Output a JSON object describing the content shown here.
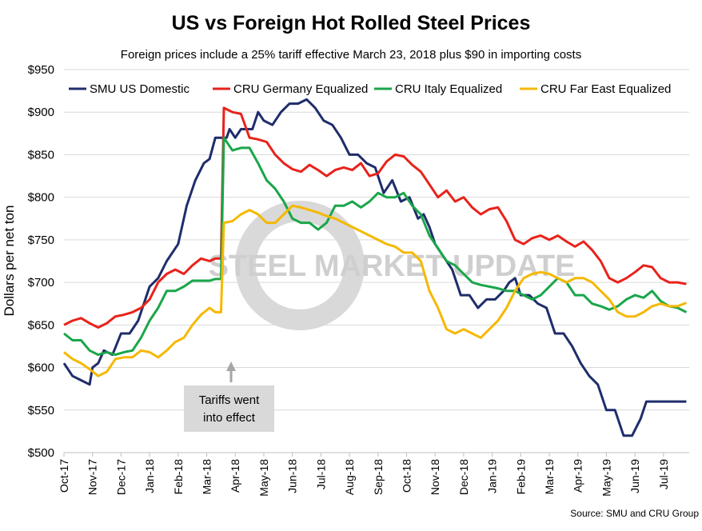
{
  "chart_data": {
    "type": "line",
    "title": "US vs Foreign Hot Rolled Steel Prices",
    "subtitle": "Foreign prices include a 25% tariff effective March 23, 2018 plus $90 in importing costs",
    "ylabel": "Dollars per net ton",
    "xlabel": "",
    "source": "Source: SMU and CRU Group",
    "watermark": "STEEL MARKET UPDATE",
    "annotation": {
      "text": [
        "Tariffs went",
        "into effect"
      ],
      "x": 5.8
    },
    "ylim": [
      500,
      950
    ],
    "yticks": [
      500,
      550,
      600,
      650,
      700,
      750,
      800,
      850,
      900,
      950
    ],
    "ytick_labels": [
      "$500",
      "$550",
      "$600",
      "$650",
      "$700",
      "$750",
      "$800",
      "$850",
      "$900",
      "$950"
    ],
    "xlim": [
      0,
      21.9
    ],
    "x_categories": [
      "Oct-17",
      "Nov-17",
      "Dec-17",
      "Jan-18",
      "Feb-18",
      "Mar-18",
      "Apr-18",
      "May-18",
      "Jun-18",
      "Jul-18",
      "Aug-18",
      "Sep-18",
      "Oct-18",
      "Nov-18",
      "Dec-18",
      "Jan-19",
      "Feb-19",
      "Mar-19",
      "Apr-19",
      "May-19",
      "Jun-19",
      "Jul-19"
    ],
    "x_note": "x values are months since Oct-17 (0 = Oct-17, 1 = Nov-17, ...)",
    "legend_position": "top",
    "grid": true,
    "series": [
      {
        "name": "SMU US Domestic",
        "color": "#1f2d6b",
        "x": [
          0,
          0.3,
          0.6,
          0.9,
          1.0,
          1.2,
          1.4,
          1.7,
          2.0,
          2.3,
          2.6,
          3.0,
          3.3,
          3.6,
          4.0,
          4.3,
          4.6,
          4.9,
          5.1,
          5.3,
          5.5,
          5.7,
          5.8,
          6.0,
          6.2,
          6.4,
          6.6,
          6.8,
          7.0,
          7.3,
          7.6,
          7.9,
          8.2,
          8.5,
          8.8,
          9.1,
          9.4,
          9.7,
          10.0,
          10.3,
          10.6,
          10.9,
          11.2,
          11.5,
          11.8,
          12.1,
          12.4,
          12.6,
          12.8,
          13.0,
          13.3,
          13.6,
          13.9,
          14.2,
          14.5,
          14.8,
          15.1,
          15.4,
          15.6,
          15.8,
          16.0,
          16.3,
          16.6,
          16.9,
          17.2,
          17.5,
          17.8,
          18.1,
          18.4,
          18.7,
          19.0,
          19.3,
          19.6,
          19.9,
          20.2,
          20.4,
          20.6,
          20.9,
          21.1,
          21.4,
          21.8
        ],
        "y": [
          605,
          590,
          585,
          580,
          600,
          605,
          620,
          615,
          640,
          640,
          655,
          695,
          705,
          725,
          745,
          790,
          820,
          840,
          845,
          870,
          870,
          870,
          880,
          870,
          880,
          880,
          880,
          900,
          890,
          885,
          900,
          910,
          910,
          915,
          905,
          890,
          885,
          870,
          850,
          850,
          840,
          835,
          805,
          820,
          795,
          800,
          775,
          780,
          765,
          745,
          730,
          715,
          685,
          685,
          670,
          680,
          680,
          690,
          700,
          705,
          685,
          685,
          675,
          670,
          640,
          640,
          625,
          605,
          590,
          580,
          550,
          550,
          520,
          520,
          540,
          560,
          560,
          560,
          560,
          560,
          560
        ]
      },
      {
        "name": "CRU Germany Equalized",
        "color": "#e8221b",
        "x": [
          0,
          0.3,
          0.6,
          0.9,
          1.2,
          1.5,
          1.8,
          2.1,
          2.4,
          2.7,
          3.0,
          3.3,
          3.6,
          3.9,
          4.2,
          4.5,
          4.8,
          5.1,
          5.3,
          5.5,
          5.6,
          5.9,
          6.2,
          6.5,
          6.8,
          7.1,
          7.4,
          7.7,
          8.0,
          8.3,
          8.6,
          8.9,
          9.2,
          9.5,
          9.8,
          10.1,
          10.4,
          10.7,
          11.0,
          11.3,
          11.6,
          11.9,
          12.2,
          12.5,
          12.8,
          13.1,
          13.4,
          13.7,
          14.0,
          14.3,
          14.6,
          14.9,
          15.2,
          15.5,
          15.8,
          16.1,
          16.4,
          16.7,
          17.0,
          17.3,
          17.6,
          17.9,
          18.2,
          18.5,
          18.8,
          19.1,
          19.4,
          19.7,
          20.0,
          20.3,
          20.6,
          20.9,
          21.2,
          21.5,
          21.8
        ],
        "y": [
          650,
          655,
          658,
          652,
          647,
          652,
          660,
          662,
          665,
          670,
          680,
          700,
          710,
          715,
          710,
          720,
          728,
          725,
          728,
          728,
          905,
          900,
          898,
          870,
          868,
          865,
          850,
          840,
          833,
          830,
          838,
          832,
          825,
          832,
          835,
          832,
          840,
          825,
          828,
          842,
          850,
          848,
          838,
          830,
          815,
          800,
          808,
          795,
          800,
          788,
          780,
          786,
          788,
          772,
          750,
          745,
          752,
          755,
          750,
          755,
          748,
          742,
          748,
          738,
          725,
          705,
          700,
          705,
          712,
          720,
          718,
          705,
          700,
          700,
          698
        ]
      },
      {
        "name": "CRU Italy Equalized",
        "color": "#1aa64a",
        "x": [
          0,
          0.3,
          0.6,
          0.9,
          1.2,
          1.5,
          1.8,
          2.1,
          2.4,
          2.7,
          3.0,
          3.3,
          3.6,
          3.9,
          4.2,
          4.5,
          4.8,
          5.1,
          5.3,
          5.5,
          5.6,
          5.9,
          6.2,
          6.5,
          6.8,
          7.1,
          7.4,
          7.7,
          8.0,
          8.3,
          8.6,
          8.9,
          9.2,
          9.5,
          9.8,
          10.1,
          10.4,
          10.7,
          11.0,
          11.3,
          11.6,
          11.9,
          12.2,
          12.5,
          12.8,
          13.1,
          13.4,
          13.7,
          14.0,
          14.3,
          14.6,
          14.9,
          15.2,
          15.5,
          15.8,
          16.1,
          16.4,
          16.7,
          17.0,
          17.3,
          17.6,
          17.9,
          18.2,
          18.5,
          18.8,
          19.1,
          19.4,
          19.7,
          20.0,
          20.3,
          20.6,
          20.9,
          21.2,
          21.5,
          21.8
        ],
        "y": [
          640,
          632,
          632,
          620,
          615,
          618,
          615,
          618,
          620,
          635,
          655,
          670,
          690,
          690,
          695,
          702,
          702,
          702,
          704,
          704,
          870,
          855,
          858,
          858,
          840,
          820,
          810,
          795,
          775,
          770,
          770,
          762,
          770,
          790,
          790,
          795,
          788,
          795,
          805,
          800,
          800,
          805,
          790,
          780,
          755,
          740,
          725,
          720,
          710,
          700,
          697,
          695,
          693,
          690,
          690,
          685,
          680,
          685,
          695,
          705,
          700,
          685,
          685,
          675,
          672,
          668,
          672,
          680,
          685,
          682,
          690,
          678,
          672,
          670,
          665
        ]
      },
      {
        "name": "CRU Far East Equalized",
        "color": "#f5b800",
        "x": [
          0,
          0.3,
          0.6,
          0.9,
          1.2,
          1.5,
          1.8,
          2.1,
          2.4,
          2.7,
          3.0,
          3.3,
          3.6,
          3.9,
          4.2,
          4.5,
          4.8,
          5.1,
          5.3,
          5.5,
          5.6,
          5.9,
          6.2,
          6.5,
          6.8,
          7.1,
          7.4,
          7.7,
          8.0,
          8.3,
          8.6,
          8.9,
          9.2,
          9.5,
          9.8,
          10.1,
          10.4,
          10.7,
          11.0,
          11.3,
          11.6,
          11.9,
          12.2,
          12.5,
          12.8,
          13.1,
          13.4,
          13.7,
          14.0,
          14.3,
          14.6,
          14.9,
          15.2,
          15.5,
          15.8,
          16.1,
          16.4,
          16.7,
          17.0,
          17.3,
          17.6,
          17.9,
          18.2,
          18.5,
          18.8,
          19.1,
          19.4,
          19.7,
          20.0,
          20.3,
          20.6,
          20.9,
          21.2,
          21.5,
          21.8
        ],
        "y": [
          618,
          610,
          605,
          598,
          590,
          595,
          610,
          612,
          612,
          620,
          618,
          612,
          620,
          630,
          635,
          650,
          662,
          670,
          665,
          665,
          770,
          772,
          780,
          785,
          780,
          770,
          770,
          780,
          790,
          788,
          785,
          782,
          778,
          775,
          770,
          765,
          760,
          755,
          750,
          745,
          742,
          735,
          735,
          725,
          690,
          670,
          645,
          640,
          645,
          640,
          635,
          645,
          655,
          670,
          690,
          705,
          710,
          712,
          710,
          705,
          700,
          705,
          705,
          700,
          690,
          680,
          665,
          660,
          660,
          665,
          672,
          675,
          672,
          672,
          676
        ]
      }
    ]
  }
}
